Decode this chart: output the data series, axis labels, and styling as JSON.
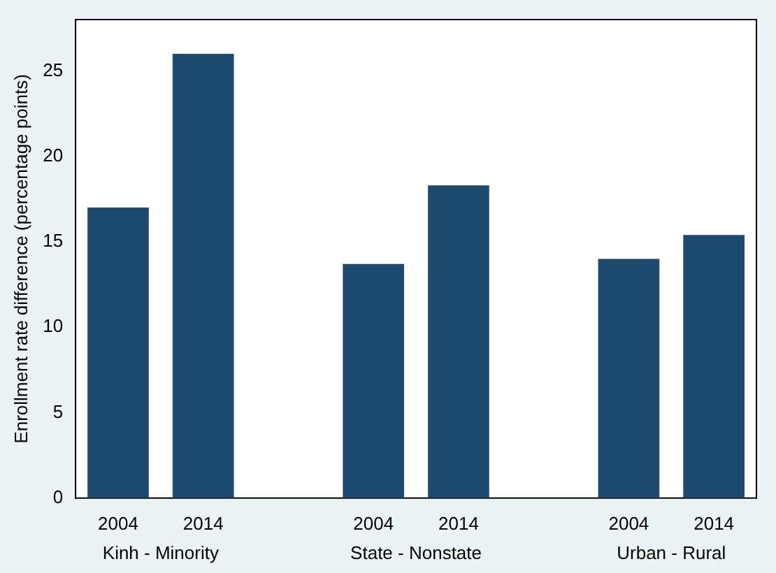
{
  "chart_data": {
    "type": "bar",
    "ylabel": "Enrollment rate difference (percentage points)",
    "categories": [
      "2004",
      "2014",
      null,
      "2004",
      "2014",
      null,
      "2004",
      "2014"
    ],
    "values": [
      17.0,
      26.0,
      null,
      13.7,
      18.3,
      null,
      14.0,
      15.4
    ],
    "color": "#1f4a6f",
    "ylim": [
      0,
      28
    ],
    "yticks": [
      0,
      5,
      10,
      15,
      20,
      25
    ],
    "grid": false,
    "legend": false,
    "annotations": [
      "Kinh - Minority",
      "State - Nonstate",
      "Urban - Rural"
    ]
  }
}
